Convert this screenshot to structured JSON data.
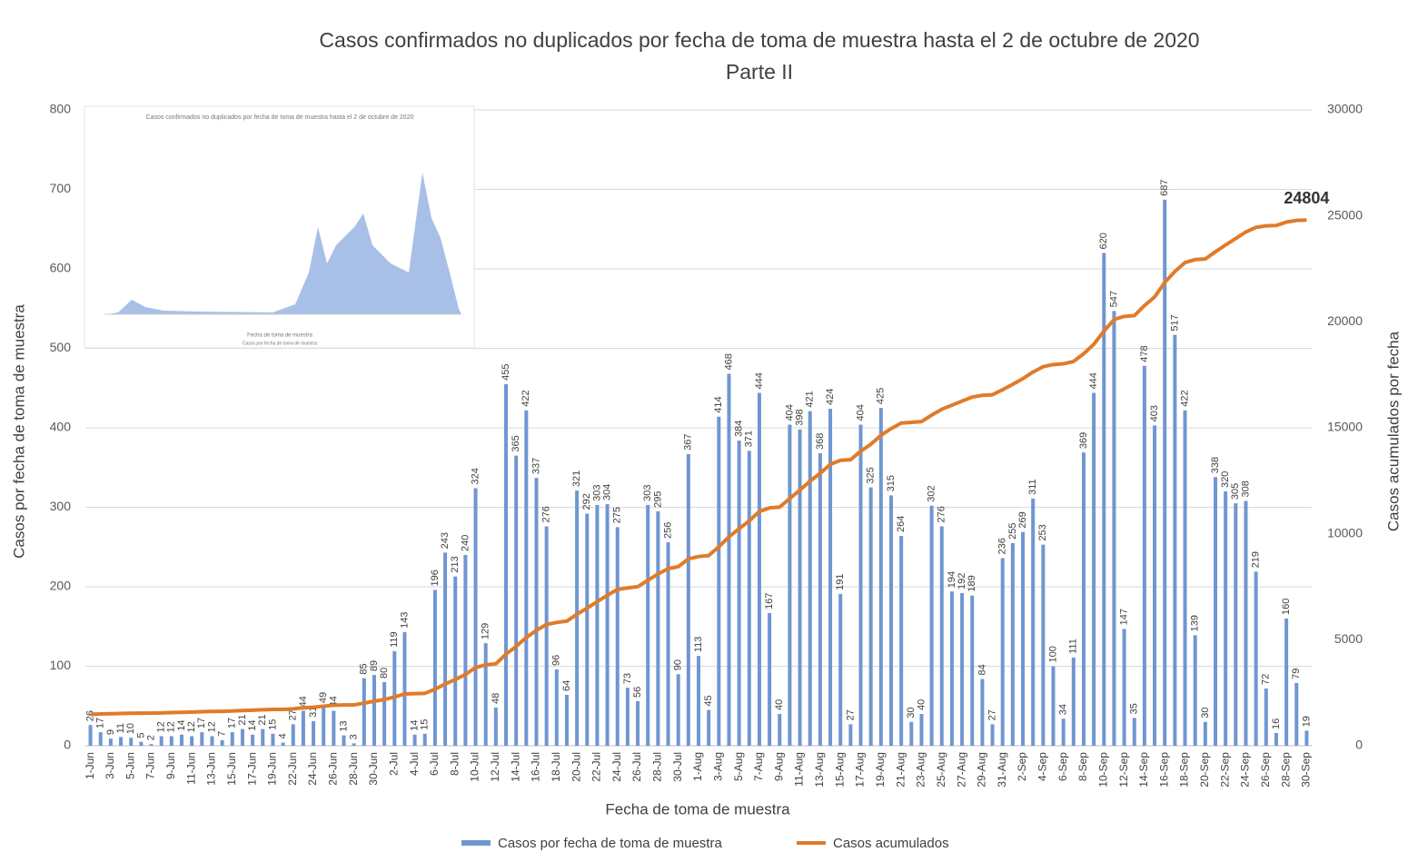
{
  "chart_data": {
    "type": "bar",
    "title": "Casos confirmados no duplicados por fecha de toma de muestra hasta el 2 de octubre de 2020",
    "subtitle": "Parte II",
    "x_label": "Fecha de toma de muestra",
    "y_label": "Casos por fecha de toma de muestra",
    "y2_label": "Casos acumulados por fecha",
    "categories": [
      "1-Jun",
      null,
      "3-Jun",
      null,
      "5-Jun",
      null,
      "7-Jun",
      null,
      "9-Jun",
      null,
      "11-Jun",
      null,
      "13-Jun",
      null,
      "15-Jun",
      null,
      "17-Jun",
      null,
      "19-Jun",
      null,
      "22-Jun",
      null,
      "24-Jun",
      null,
      "26-Jun",
      null,
      "28-Jun",
      null,
      "30-Jun",
      null,
      "2-Jul",
      null,
      "4-Jul",
      null,
      "6-Jul",
      null,
      "8-Jul",
      null,
      "10-Jul",
      null,
      "12-Jul",
      null,
      "14-Jul",
      null,
      "16-Jul",
      null,
      "18-Jul",
      null,
      "20-Jul",
      null,
      "22-Jul",
      null,
      "24-Jul",
      null,
      "26-Jul",
      null,
      "28-Jul",
      null,
      "30-Jul",
      null,
      "1-Aug",
      null,
      "3-Aug",
      null,
      "5-Aug",
      null,
      "7-Aug",
      null,
      "9-Aug",
      null,
      "11-Aug",
      null,
      "13-Aug",
      null,
      "15-Aug",
      null,
      "17-Aug",
      null,
      "19-Aug",
      null,
      "21-Aug",
      null,
      "23-Aug",
      null,
      "25-Aug",
      null,
      "27-Aug",
      null,
      "29-Aug",
      null,
      "31-Aug",
      null,
      "2-Sep",
      null,
      "4-Sep",
      null,
      "6-Sep",
      null,
      "8-Sep",
      null,
      "10-Sep",
      null,
      "12-Sep",
      null,
      "14-Sep",
      null,
      "16-Sep",
      null,
      "18-Sep",
      null,
      "20-Sep",
      null,
      "22-Sep",
      null,
      "24-Sep",
      null,
      "26-Sep",
      null,
      "28-Sep",
      null,
      "30-Sep"
    ],
    "series": [
      {
        "name": "Casos por fecha de toma de muestra",
        "type": "bar",
        "color": "#6f96d2",
        "values": [
          26,
          17,
          9,
          11,
          10,
          5,
          2,
          12,
          12,
          14,
          12,
          17,
          12,
          7,
          17,
          21,
          14,
          21,
          15,
          4,
          27,
          44,
          31,
          49,
          44,
          13,
          3,
          85,
          89,
          80,
          119,
          143,
          14,
          15,
          196,
          243,
          213,
          240,
          324,
          129,
          48,
          455,
          365,
          422,
          337,
          276,
          96,
          64,
          321,
          292,
          303,
          304,
          275,
          73,
          56,
          303,
          295,
          256,
          90,
          367,
          113,
          45,
          414,
          468,
          384,
          371,
          444,
          167,
          40,
          404,
          398,
          421,
          368,
          424,
          191,
          27,
          404,
          325,
          425,
          315,
          264,
          30,
          40,
          302,
          276,
          194,
          192,
          189,
          84,
          27,
          236,
          255,
          269,
          311,
          253,
          100,
          34,
          111,
          369,
          444,
          620,
          547,
          147,
          35,
          478,
          403,
          687,
          517,
          422,
          139,
          30,
          338,
          320,
          305,
          308,
          219,
          72,
          16,
          160,
          79,
          19
        ]
      },
      {
        "name": "Casos acumulados",
        "type": "line",
        "axis": "y2",
        "color": "#e07b2a",
        "values": [
          1484,
          1501,
          1510,
          1521,
          1531,
          1536,
          1538,
          1550,
          1562,
          1576,
          1588,
          1605,
          1617,
          1624,
          1641,
          1662,
          1676,
          1697,
          1712,
          1716,
          1743,
          1787,
          1818,
          1867,
          1911,
          1924,
          1927,
          2012,
          2101,
          2181,
          2300,
          2443,
          2457,
          2472,
          2668,
          2911,
          3124,
          3364,
          3688,
          3817,
          3865,
          4320,
          4685,
          5107,
          5444,
          5720,
          5816,
          5880,
          6201,
          6493,
          6796,
          7100,
          7375,
          7448,
          7504,
          7807,
          8102,
          8358,
          8448,
          8815,
          8928,
          8973,
          9387,
          9855,
          10239,
          10610,
          11054,
          11221,
          11261,
          11665,
          12063,
          12484,
          12852,
          13276,
          13467,
          13494,
          13898,
          14223,
          14648,
          14963,
          15227,
          15257,
          15297,
          15599,
          15875,
          16069,
          16261,
          16450,
          16534,
          16561,
          16797,
          17052,
          17321,
          17632,
          17885,
          17985,
          18019,
          18130,
          18499,
          18943,
          19563,
          20110,
          20257,
          20292,
          20770,
          21173,
          21860,
          22377,
          22799,
          22938,
          22968,
          23306,
          23626,
          23931,
          24239,
          24458,
          24530,
          24546,
          24706,
          24785,
          24804
        ]
      }
    ],
    "ylim": [
      0,
      800
    ],
    "yticks": [
      0,
      100,
      200,
      300,
      400,
      500,
      600,
      700,
      800
    ],
    "y2lim": [
      0,
      30000
    ],
    "y2ticks": [
      0,
      5000,
      10000,
      15000,
      20000,
      25000,
      30000
    ],
    "grid": true,
    "legend": "bottom"
  },
  "inset": {
    "title": "Casos confirmados no duplicados por fecha de toma de muestra hasta el 2 de octubre de 2020",
    "x_label": "Fecha de toma de muestra",
    "legend": "Casos por fecha de toma de muestra"
  }
}
